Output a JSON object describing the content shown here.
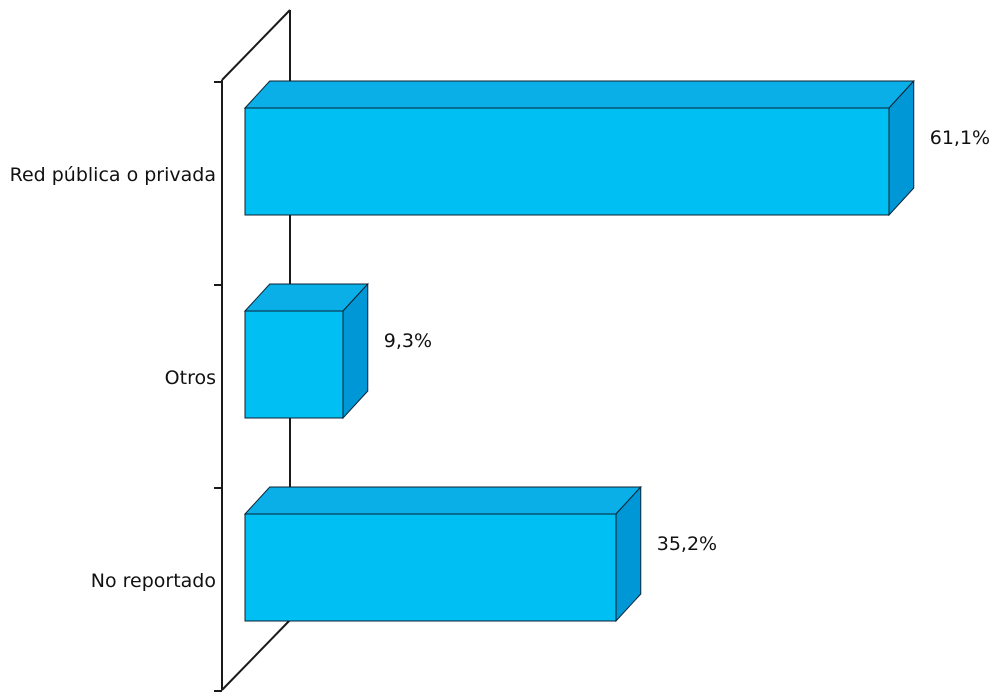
{
  "chart_data": {
    "type": "bar",
    "orientation": "horizontal",
    "style": "3d",
    "categories": [
      "Red pública o privada",
      "Otros",
      "No reportado"
    ],
    "values": [
      61.1,
      9.3,
      35.2
    ],
    "value_labels": [
      "61,1%",
      "9,3%",
      "35,2%"
    ],
    "xlim": [
      0,
      61.1
    ],
    "grid": false,
    "legend": "none",
    "colors": {
      "bar_front": "#00BFF3",
      "bar_top": "#0AAFE8",
      "bar_side": "#0097D6",
      "axis": "#1a1a1a"
    }
  }
}
